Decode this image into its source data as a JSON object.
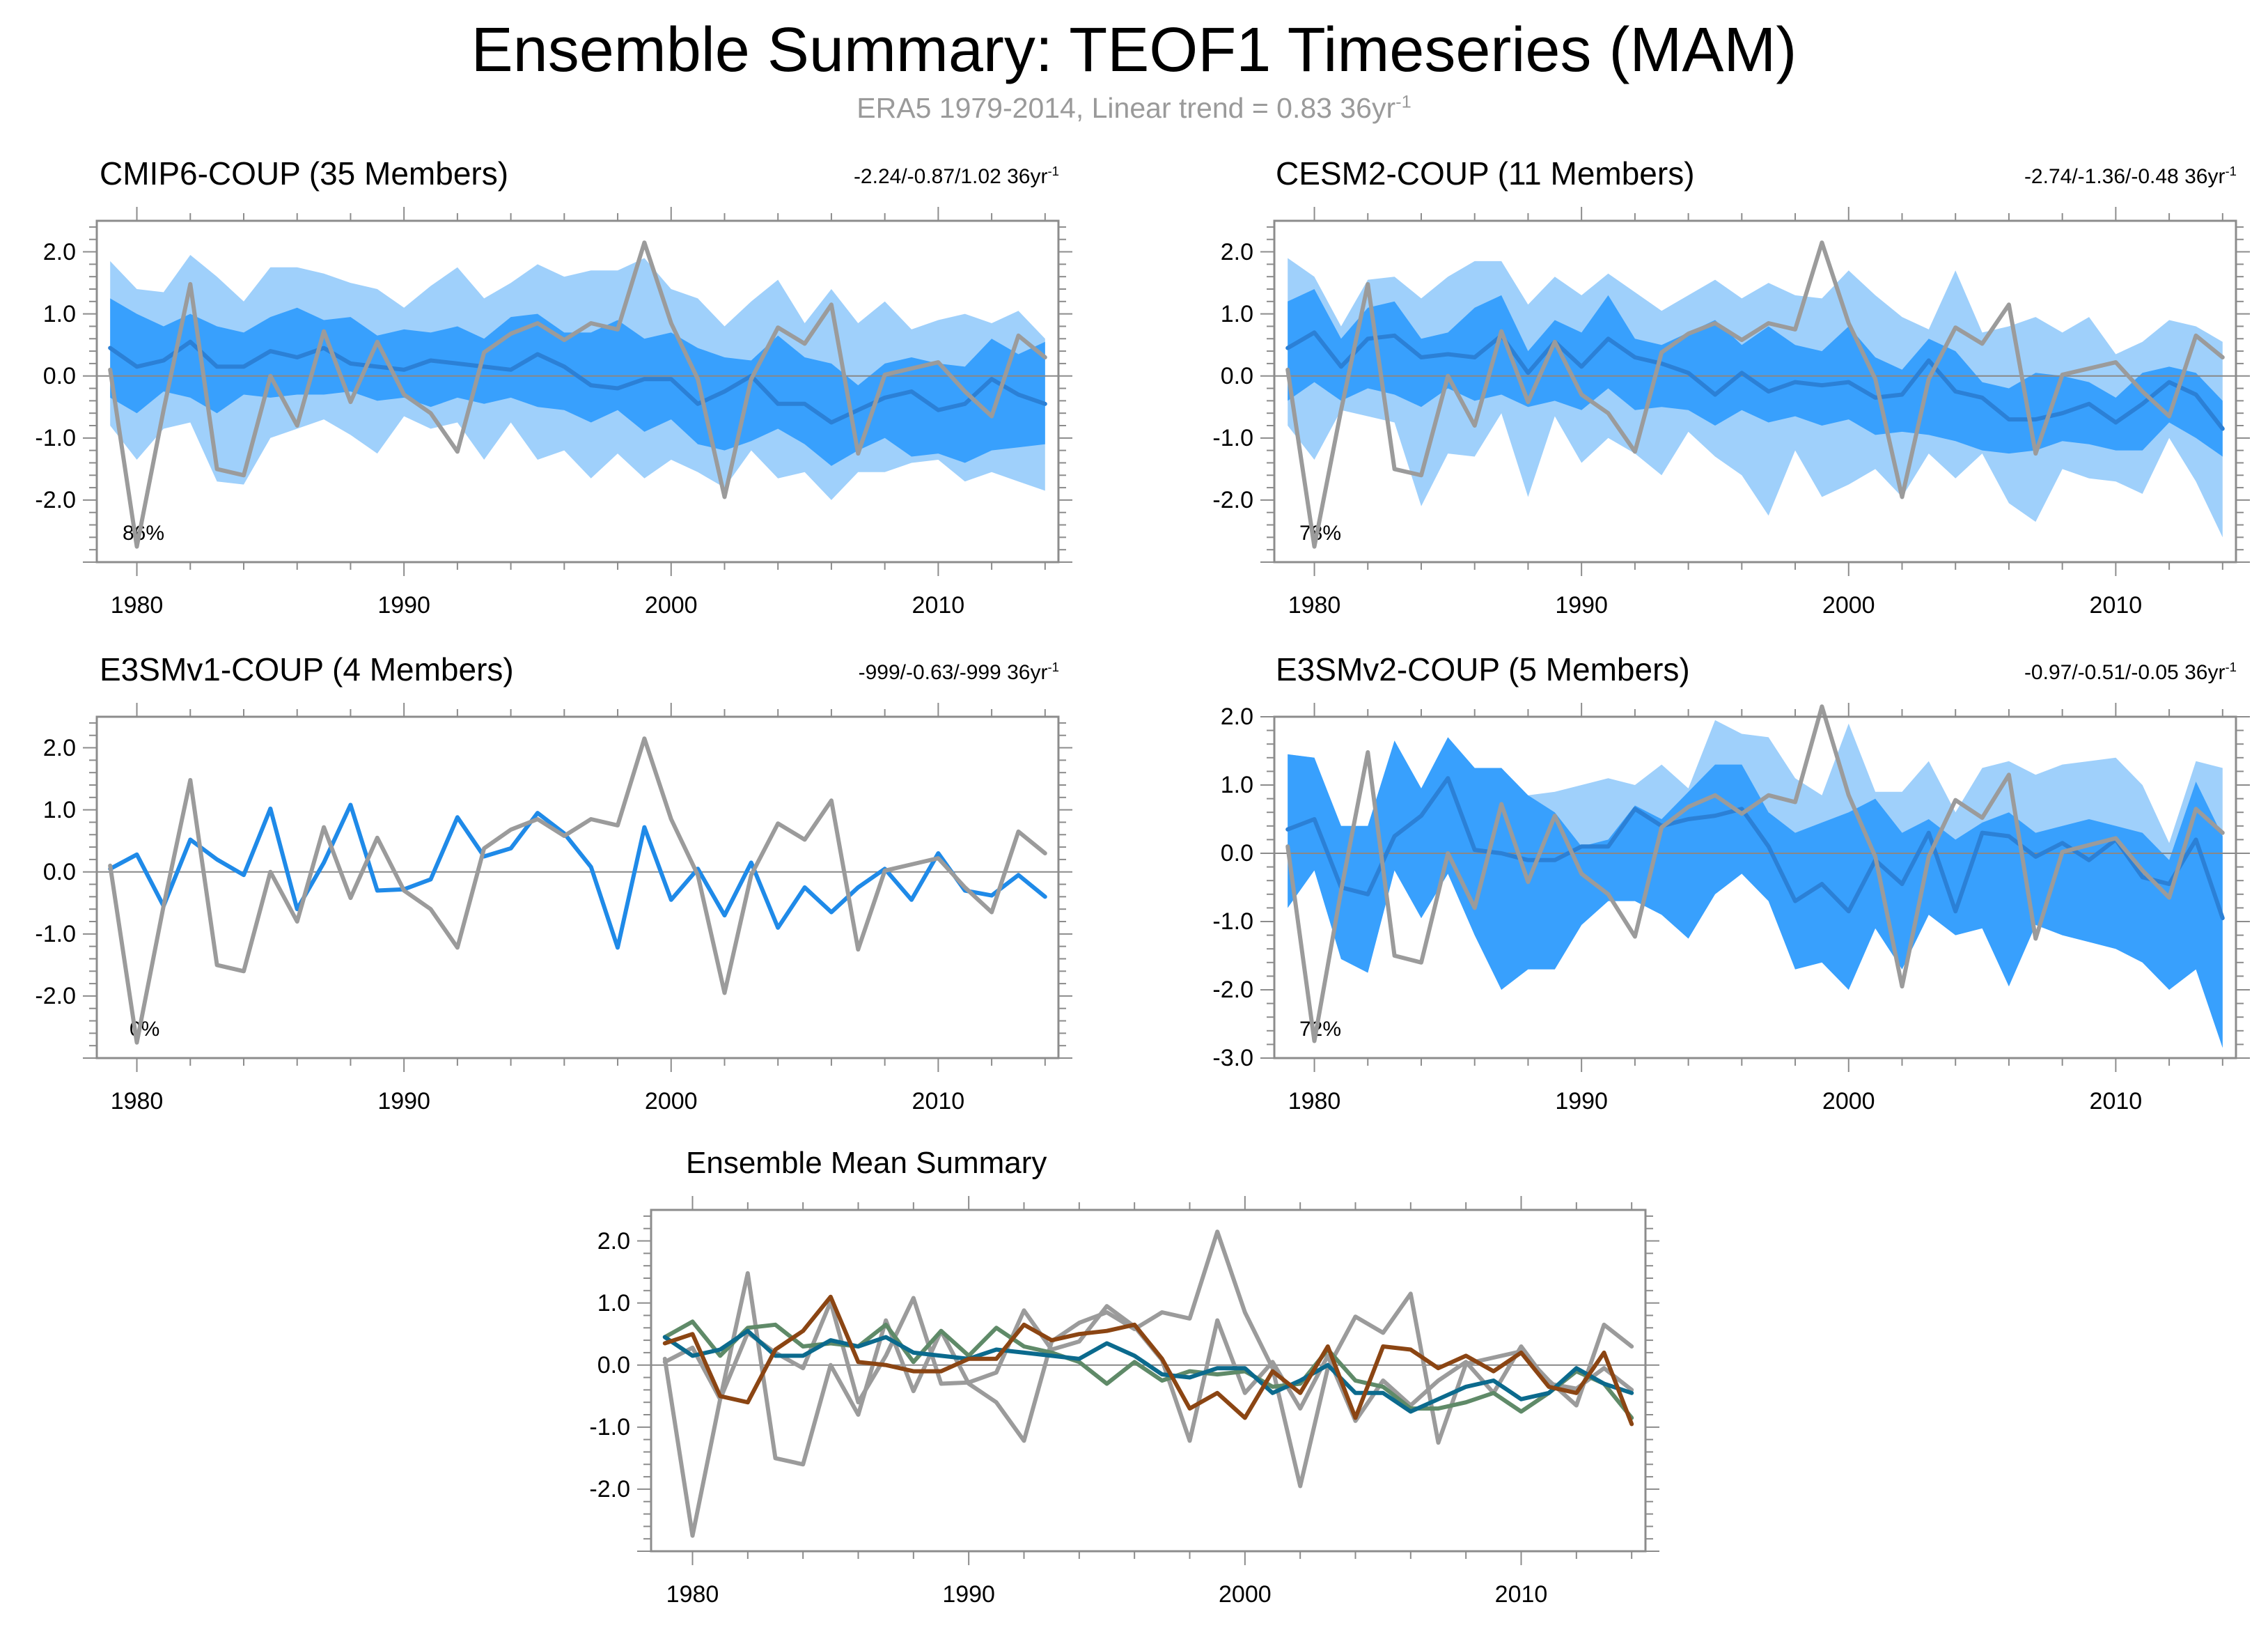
{
  "figure": {
    "title": "Ensemble Summary: TEOF1 Timeseries (MAM)",
    "subtitle_text": "ERA5 1979-2014, Linear trend = 0.83 36yr",
    "subtitle_sup": "-1"
  },
  "colors": {
    "obs": "#9b9b9b",
    "band_outer": "#9fd0fb",
    "band_inner": "#38a0fd",
    "ens_mean": "#2b80d6",
    "single_member": "#1f8ae8",
    "cmip6": "#0b6a8d",
    "cesm2": "#5f8a68",
    "e3smv1": "#9b9b9b",
    "e3smv2": "#8b4513",
    "zero_line": "#888888",
    "axis": "#8c8c8c"
  },
  "chart_data": [
    {
      "type": "line",
      "id": "cmip6",
      "title": "CMIP6-COUP (35 Members)",
      "title_color": "#0b6a8d",
      "trend_text": "-2.24/-0.87/1.02 36yr",
      "trend_sup": "-1",
      "percent_label": "86%",
      "xlim": [
        1978.5,
        2014.5
      ],
      "ylim": [
        -3.0,
        2.5
      ],
      "xticks": [
        1980,
        1990,
        2000,
        2010
      ],
      "xtick_labels": [
        "1980",
        "1990",
        "2000",
        "2010"
      ],
      "yticks": [
        -2.0,
        -1.0,
        0.0,
        1.0,
        2.0
      ],
      "ytick_labels": [
        "-2.0",
        "-1.0",
        "0.0",
        "1.0",
        "2.0"
      ],
      "x_start": 1979,
      "obs": [
        0.1,
        -2.75,
        -0.55,
        1.48,
        -1.5,
        -1.6,
        0.0,
        -0.8,
        0.72,
        -0.42,
        0.55,
        -0.3,
        -0.6,
        -1.22,
        0.38,
        0.68,
        0.85,
        0.58,
        0.85,
        0.75,
        2.15,
        0.85,
        -0.05,
        -1.95,
        -0.05,
        0.78,
        0.52,
        1.15,
        -1.25,
        0.02,
        0.12,
        0.22,
        -0.25,
        -0.65,
        0.65,
        0.3
      ],
      "band_outer_upper": [
        1.85,
        1.4,
        1.35,
        1.95,
        1.6,
        1.2,
        1.75,
        1.75,
        1.65,
        1.5,
        1.4,
        1.1,
        1.45,
        1.75,
        1.25,
        1.5,
        1.8,
        1.6,
        1.7,
        1.7,
        1.9,
        1.4,
        1.25,
        0.8,
        1.2,
        1.55,
        0.85,
        1.4,
        0.85,
        1.2,
        0.75,
        0.9,
        1.0,
        0.85,
        1.05,
        0.6
      ],
      "band_inner_upper": [
        1.25,
        1.0,
        0.8,
        1.0,
        0.8,
        0.7,
        0.95,
        1.1,
        0.9,
        0.95,
        0.65,
        0.75,
        0.7,
        0.8,
        0.6,
        0.95,
        1.0,
        0.7,
        0.7,
        0.9,
        0.6,
        0.7,
        0.45,
        0.3,
        0.25,
        0.65,
        0.3,
        0.2,
        -0.15,
        0.2,
        0.3,
        0.2,
        0.15,
        0.6,
        0.35,
        0.55
      ],
      "band_inner_lower": [
        -0.35,
        -0.6,
        -0.25,
        -0.35,
        -0.6,
        -0.3,
        -0.35,
        -0.3,
        -0.3,
        -0.25,
        -0.4,
        -0.35,
        -0.5,
        -0.35,
        -0.45,
        -0.35,
        -0.5,
        -0.55,
        -0.75,
        -0.55,
        -0.9,
        -0.7,
        -1.1,
        -1.2,
        -1.05,
        -0.85,
        -1.1,
        -1.45,
        -1.2,
        -1.0,
        -1.3,
        -1.25,
        -1.4,
        -1.2,
        -1.15,
        -1.1
      ],
      "band_outer_lower": [
        -0.8,
        -1.35,
        -0.85,
        -0.75,
        -1.7,
        -1.75,
        -1.0,
        -0.85,
        -0.7,
        -0.95,
        -1.25,
        -0.65,
        -0.85,
        -0.75,
        -1.35,
        -0.75,
        -1.35,
        -1.2,
        -1.65,
        -1.25,
        -1.65,
        -1.35,
        -1.55,
        -1.8,
        -1.2,
        -1.65,
        -1.55,
        -2.0,
        -1.55,
        -1.55,
        -1.4,
        -1.35,
        -1.7,
        -1.55,
        -1.7,
        -1.85
      ],
      "ens_mean": [
        0.45,
        0.15,
        0.25,
        0.55,
        0.15,
        0.15,
        0.4,
        0.3,
        0.45,
        0.2,
        0.15,
        0.1,
        0.25,
        0.2,
        0.15,
        0.1,
        0.35,
        0.15,
        -0.15,
        -0.2,
        -0.05,
        -0.05,
        -0.45,
        -0.25,
        0.0,
        -0.45,
        -0.45,
        -0.75,
        -0.55,
        -0.35,
        -0.25,
        -0.55,
        -0.45,
        -0.05,
        -0.3,
        -0.45
      ]
    },
    {
      "type": "line",
      "id": "cesm2",
      "title": "CESM2-COUP (11 Members)",
      "title_color": "#5f8a68",
      "trend_text": "-2.74/-1.36/-0.48 36yr",
      "trend_sup": "-1",
      "percent_label": "78%",
      "xlim": [
        1978.5,
        2014.5
      ],
      "ylim": [
        -3.0,
        2.5
      ],
      "xticks": [
        1980,
        1990,
        2000,
        2010
      ],
      "xtick_labels": [
        "1980",
        "1990",
        "2000",
        "2010"
      ],
      "yticks": [
        -2.0,
        -1.0,
        0.0,
        1.0,
        2.0
      ],
      "ytick_labels": [
        "-2.0",
        "-1.0",
        "0.0",
        "1.0",
        "2.0"
      ],
      "x_start": 1979,
      "obs": [
        0.1,
        -2.75,
        -0.55,
        1.48,
        -1.5,
        -1.6,
        0.0,
        -0.8,
        0.72,
        -0.42,
        0.55,
        -0.3,
        -0.6,
        -1.22,
        0.38,
        0.68,
        0.85,
        0.58,
        0.85,
        0.75,
        2.15,
        0.85,
        -0.05,
        -1.95,
        -0.05,
        0.78,
        0.52,
        1.15,
        -1.25,
        0.02,
        0.12,
        0.22,
        -0.25,
        -0.65,
        0.65,
        0.3
      ],
      "band_outer_upper": [
        1.9,
        1.6,
        0.8,
        1.55,
        1.6,
        1.25,
        1.6,
        1.85,
        1.85,
        1.15,
        1.6,
        1.3,
        1.65,
        1.35,
        1.05,
        1.3,
        1.55,
        1.25,
        1.5,
        1.3,
        1.25,
        1.7,
        1.3,
        0.95,
        0.75,
        1.7,
        0.7,
        0.8,
        0.95,
        0.7,
        0.95,
        0.35,
        0.55,
        0.9,
        0.8,
        0.55
      ],
      "band_inner_upper": [
        1.2,
        1.4,
        0.6,
        1.1,
        1.2,
        0.6,
        0.7,
        1.1,
        1.3,
        0.4,
        0.9,
        0.7,
        1.3,
        0.6,
        0.5,
        0.7,
        0.9,
        0.5,
        0.8,
        0.5,
        0.4,
        0.8,
        0.3,
        0.1,
        0.6,
        0.4,
        -0.1,
        -0.2,
        0.05,
        0.0,
        -0.1,
        -0.35,
        0.05,
        0.15,
        0.05,
        -0.4
      ],
      "band_inner_lower": [
        -0.4,
        -0.1,
        -0.4,
        -0.2,
        -0.3,
        -0.5,
        -0.2,
        -0.4,
        -0.3,
        -0.5,
        -0.4,
        -0.55,
        -0.2,
        -0.55,
        -0.5,
        -0.55,
        -0.8,
        -0.55,
        -0.75,
        -0.65,
        -0.8,
        -0.7,
        -0.95,
        -0.9,
        -0.95,
        -1.05,
        -1.2,
        -1.25,
        -1.2,
        -1.05,
        -1.1,
        -1.2,
        -1.2,
        -0.75,
        -1.0,
        -1.3
      ],
      "band_outer_lower": [
        -0.8,
        -1.35,
        -0.55,
        -0.65,
        -0.75,
        -2.1,
        -1.25,
        -1.3,
        -0.6,
        -1.95,
        -0.65,
        -1.4,
        -1.0,
        -1.25,
        -1.6,
        -0.9,
        -1.3,
        -1.6,
        -2.25,
        -1.2,
        -1.95,
        -1.75,
        -1.5,
        -1.95,
        -1.25,
        -1.65,
        -1.25,
        -2.05,
        -2.35,
        -1.5,
        -1.65,
        -1.7,
        -1.9,
        -1.0,
        -1.7,
        -2.6
      ],
      "ens_mean": [
        0.45,
        0.7,
        0.15,
        0.6,
        0.65,
        0.3,
        0.35,
        0.3,
        0.65,
        0.05,
        0.55,
        0.15,
        0.6,
        0.3,
        0.2,
        0.05,
        -0.3,
        0.05,
        -0.25,
        -0.1,
        -0.15,
        -0.1,
        -0.35,
        -0.3,
        0.25,
        -0.25,
        -0.35,
        -0.7,
        -0.7,
        -0.6,
        -0.45,
        -0.75,
        -0.45,
        -0.1,
        -0.3,
        -0.85
      ]
    },
    {
      "type": "line",
      "id": "e3smv1",
      "title": "E3SMv1-COUP (4 Members)",
      "title_color": "#9b9b9b",
      "trend_text": "-999/-0.63/-999 36yr",
      "trend_sup": "-1",
      "percent_label": "0%",
      "xlim": [
        1978.5,
        2014.5
      ],
      "ylim": [
        -3.0,
        2.5
      ],
      "xticks": [
        1980,
        1990,
        2000,
        2010
      ],
      "xtick_labels": [
        "1980",
        "1990",
        "2000",
        "2010"
      ],
      "yticks": [
        -2.0,
        -1.0,
        0.0,
        1.0,
        2.0
      ],
      "ytick_labels": [
        "-2.0",
        "-1.0",
        "0.0",
        "1.0",
        "2.0"
      ],
      "x_start": 1979,
      "obs": [
        0.1,
        -2.75,
        -0.55,
        1.48,
        -1.5,
        -1.6,
        0.0,
        -0.8,
        0.72,
        -0.42,
        0.55,
        -0.3,
        -0.6,
        -1.22,
        0.38,
        0.68,
        0.85,
        0.58,
        0.85,
        0.75,
        2.15,
        0.85,
        -0.05,
        -1.95,
        -0.05,
        0.78,
        0.52,
        1.15,
        -1.25,
        0.02,
        0.12,
        0.22,
        -0.25,
        -0.65,
        0.65,
        0.3
      ],
      "member": [
        0.05,
        0.28,
        -0.55,
        0.52,
        0.2,
        -0.05,
        1.02,
        -0.6,
        0.15,
        1.08,
        -0.3,
        -0.28,
        -0.12,
        0.88,
        0.25,
        0.38,
        0.95,
        0.62,
        0.08,
        -1.22,
        0.72,
        -0.45,
        0.05,
        -0.7,
        0.15,
        -0.9,
        -0.25,
        -0.65,
        -0.25,
        0.05,
        -0.45,
        0.3,
        -0.3,
        -0.38,
        -0.05,
        -0.4
      ]
    },
    {
      "type": "line",
      "id": "e3smv2",
      "title": "E3SMv2-COUP (5 Members)",
      "title_color": "#8b4513",
      "trend_text": "-0.97/-0.51/-0.05 36yr",
      "trend_sup": "-1",
      "percent_label": "72%",
      "xlim": [
        1978.5,
        2014.5
      ],
      "ylim": [
        -3.0,
        2.0
      ],
      "xticks": [
        1980,
        1990,
        2000,
        2010
      ],
      "xtick_labels": [
        "1980",
        "1990",
        "2000",
        "2010"
      ],
      "yticks": [
        -3.0,
        -2.0,
        -1.0,
        0.0,
        1.0,
        2.0
      ],
      "ytick_labels": [
        "-3.0",
        "-2.0",
        "-1.0",
        "0.0",
        "1.0",
        "2.0"
      ],
      "x_start": 1979,
      "obs": [
        0.1,
        -2.75,
        -0.55,
        1.48,
        -1.5,
        -1.6,
        0.0,
        -0.8,
        0.72,
        -0.42,
        0.55,
        -0.3,
        -0.6,
        -1.22,
        0.38,
        0.68,
        0.85,
        0.58,
        0.85,
        0.75,
        2.15,
        0.85,
        -0.05,
        -1.95,
        -0.05,
        0.78,
        0.52,
        1.15,
        -1.25,
        0.02,
        0.12,
        0.22,
        -0.25,
        -0.65,
        0.65,
        0.3
      ],
      "band_outer_upper": [
        1.45,
        1.4,
        0.4,
        0.4,
        1.65,
        0.95,
        1.7,
        1.25,
        1.25,
        0.85,
        0.9,
        1.0,
        1.1,
        1.0,
        1.3,
        0.95,
        1.95,
        1.75,
        1.7,
        1.1,
        0.85,
        1.9,
        0.9,
        0.9,
        1.35,
        0.6,
        1.25,
        1.35,
        1.15,
        1.3,
        1.35,
        1.4,
        1.0,
        0.15,
        1.35,
        1.25
      ],
      "band_inner_upper": [
        1.45,
        1.4,
        0.4,
        0.4,
        1.65,
        0.95,
        1.7,
        1.25,
        1.25,
        0.85,
        0.6,
        0.1,
        0.2,
        0.7,
        0.5,
        0.9,
        1.3,
        1.3,
        0.6,
        0.3,
        0.45,
        0.6,
        0.8,
        0.3,
        0.5,
        0.2,
        0.45,
        0.6,
        0.3,
        0.4,
        0.5,
        0.4,
        0.3,
        -0.1,
        1.05,
        0.25
      ],
      "band_inner_lower": [
        -0.8,
        -0.25,
        -1.55,
        -1.75,
        -0.25,
        -0.95,
        -0.3,
        -1.2,
        -2.0,
        -1.7,
        -1.7,
        -1.05,
        -0.7,
        -0.7,
        -0.9,
        -1.25,
        -0.6,
        -0.3,
        -0.7,
        -1.7,
        -1.6,
        -2.0,
        -1.1,
        -1.7,
        -0.9,
        -1.2,
        -1.1,
        -1.95,
        -1.05,
        -1.2,
        -1.3,
        -1.4,
        -1.6,
        -2.0,
        -1.7,
        -2.85
      ],
      "band_outer_lower": [
        -0.8,
        -0.25,
        -1.55,
        -1.75,
        -0.25,
        -0.95,
        -0.3,
        -1.2,
        -2.0,
        -1.7,
        -1.7,
        -1.05,
        -0.7,
        -0.7,
        -0.9,
        -1.25,
        -0.6,
        -0.3,
        -0.7,
        -1.7,
        -1.6,
        -2.0,
        -1.1,
        -1.7,
        -0.9,
        -1.2,
        -1.1,
        -1.95,
        -1.05,
        -1.2,
        -1.3,
        -1.4,
        -1.6,
        -2.0,
        -1.7,
        -2.85
      ],
      "ens_mean": [
        0.35,
        0.5,
        -0.5,
        -0.6,
        0.25,
        0.55,
        1.1,
        0.05,
        0.0,
        -0.1,
        -0.1,
        0.1,
        0.1,
        0.65,
        0.4,
        0.5,
        0.55,
        0.65,
        0.1,
        -0.7,
        -0.45,
        -0.85,
        -0.1,
        -0.45,
        0.3,
        -0.85,
        0.3,
        0.25,
        -0.05,
        0.15,
        -0.1,
        0.2,
        -0.35,
        -0.45,
        0.2,
        -0.95
      ]
    },
    {
      "type": "line",
      "id": "summary",
      "title": "Ensemble Mean Summary",
      "xlim": [
        1978.5,
        2014.5
      ],
      "ylim": [
        -3.0,
        2.5
      ],
      "xticks": [
        1980,
        1990,
        2000,
        2010
      ],
      "xtick_labels": [
        "1980",
        "1990",
        "2000",
        "2010"
      ],
      "yticks": [
        -2.0,
        -1.0,
        0.0,
        1.0,
        2.0
      ],
      "ytick_labels": [
        "-2.0",
        "-1.0",
        "0.0",
        "1.0",
        "2.0"
      ],
      "x_start": 1979,
      "series": [
        {
          "name": "ERA5",
          "color": "#9b9b9b",
          "values": [
            0.1,
            -2.75,
            -0.55,
            1.48,
            -1.5,
            -1.6,
            0.0,
            -0.8,
            0.72,
            -0.42,
            0.55,
            -0.3,
            -0.6,
            -1.22,
            0.38,
            0.68,
            0.85,
            0.58,
            0.85,
            0.75,
            2.15,
            0.85,
            -0.05,
            -1.95,
            -0.05,
            0.78,
            0.52,
            1.15,
            -1.25,
            0.02,
            0.12,
            0.22,
            -0.25,
            -0.65,
            0.65,
            0.3
          ]
        },
        {
          "name": "E3SMv1-COUP",
          "color": "#9b9b9b",
          "values": [
            0.05,
            0.28,
            -0.55,
            0.52,
            0.2,
            -0.05,
            1.02,
            -0.6,
            0.15,
            1.08,
            -0.3,
            -0.28,
            -0.12,
            0.88,
            0.25,
            0.38,
            0.95,
            0.62,
            0.08,
            -1.22,
            0.72,
            -0.45,
            0.05,
            -0.7,
            0.15,
            -0.9,
            -0.25,
            -0.65,
            -0.25,
            0.05,
            -0.45,
            0.3,
            -0.3,
            -0.38,
            -0.05,
            -0.4
          ]
        },
        {
          "name": "CESM2-COUP",
          "color": "#5f8a68",
          "values": [
            0.45,
            0.7,
            0.15,
            0.6,
            0.65,
            0.3,
            0.35,
            0.3,
            0.65,
            0.05,
            0.55,
            0.15,
            0.6,
            0.3,
            0.2,
            0.05,
            -0.3,
            0.05,
            -0.25,
            -0.1,
            -0.15,
            -0.1,
            -0.35,
            -0.3,
            0.25,
            -0.25,
            -0.35,
            -0.7,
            -0.7,
            -0.6,
            -0.45,
            -0.75,
            -0.45,
            -0.1,
            -0.3,
            -0.85
          ]
        },
        {
          "name": "CMIP6-COUP",
          "color": "#0b6a8d",
          "values": [
            0.45,
            0.15,
            0.25,
            0.55,
            0.15,
            0.15,
            0.4,
            0.3,
            0.45,
            0.2,
            0.15,
            0.1,
            0.25,
            0.2,
            0.15,
            0.1,
            0.35,
            0.15,
            -0.15,
            -0.2,
            -0.05,
            -0.05,
            -0.45,
            -0.25,
            0.0,
            -0.45,
            -0.45,
            -0.75,
            -0.55,
            -0.35,
            -0.25,
            -0.55,
            -0.45,
            -0.05,
            -0.3,
            -0.45
          ]
        },
        {
          "name": "E3SMv2-COUP",
          "color": "#8b4513",
          "values": [
            0.35,
            0.5,
            -0.5,
            -0.6,
            0.25,
            0.55,
            1.1,
            0.05,
            0.0,
            -0.1,
            -0.1,
            0.1,
            0.1,
            0.65,
            0.4,
            0.5,
            0.55,
            0.65,
            0.1,
            -0.7,
            -0.45,
            -0.85,
            -0.1,
            -0.45,
            0.3,
            -0.85,
            0.3,
            0.25,
            -0.05,
            0.15,
            -0.1,
            0.2,
            -0.35,
            -0.45,
            0.2,
            -0.95
          ]
        }
      ]
    }
  ]
}
